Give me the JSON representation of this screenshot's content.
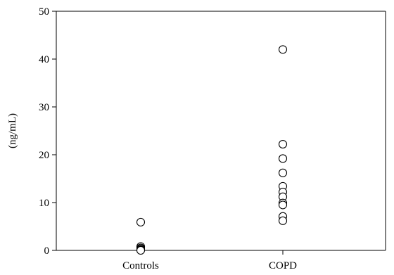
{
  "chart_data": {
    "type": "scatter",
    "title": "",
    "xlabel": "",
    "ylabel": "(ng/mL)",
    "ylim": [
      0,
      50
    ],
    "yticks": [
      0,
      10,
      20,
      30,
      40,
      50
    ],
    "categories": [
      "Controls",
      "COPD"
    ],
    "grid": false,
    "legend": "none",
    "marker": "open-circle",
    "series": [
      {
        "category": "Controls",
        "values": [
          5.9,
          0.8,
          0.5,
          0.3,
          0.1,
          0.0
        ]
      },
      {
        "category": "COPD",
        "values": [
          42.0,
          22.2,
          19.2,
          16.2,
          13.4,
          12.2,
          11.2,
          9.9,
          9.5,
          7.1,
          6.2
        ]
      }
    ]
  }
}
